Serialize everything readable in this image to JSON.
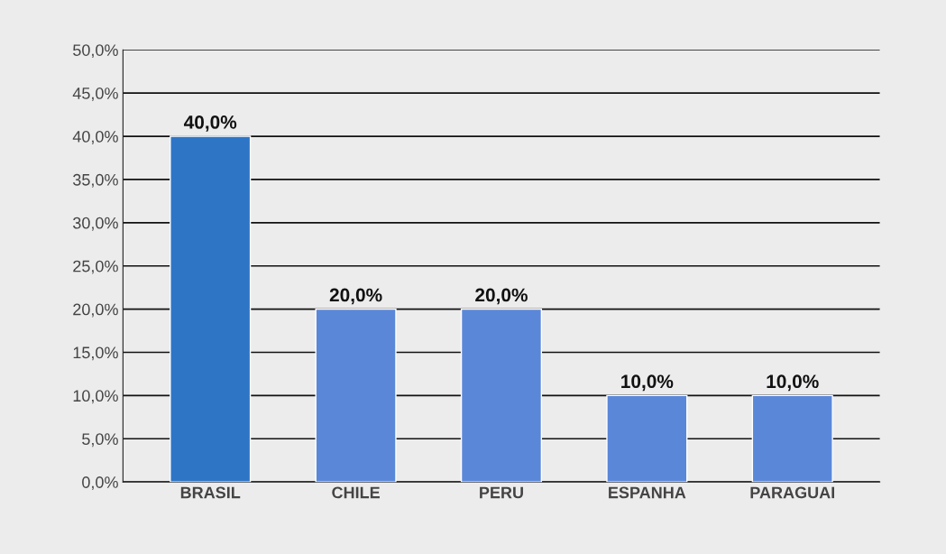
{
  "chart_data": {
    "type": "bar",
    "categories": [
      "BRASIL",
      "CHILE",
      "PERU",
      "ESPANHA",
      "PARAGUAI"
    ],
    "values": [
      40,
      20,
      20,
      10,
      10
    ],
    "colors": [
      "#2e75c6",
      "#5b87d8",
      "#5b87d8",
      "#5b87d8",
      "#5b87d8"
    ],
    "value_labels": [
      "40,0%",
      "20,0%",
      "20,0%",
      "10,0%",
      "10,0%"
    ],
    "ylim": [
      0,
      50
    ],
    "yticks": [
      {
        "value": 0,
        "label": "0,0%"
      },
      {
        "value": 5,
        "label": "5,0%"
      },
      {
        "value": 10,
        "label": "10,0%"
      },
      {
        "value": 15,
        "label": "15,0%"
      },
      {
        "value": 20,
        "label": "20,0%"
      },
      {
        "value": 25,
        "label": "25,0%"
      },
      {
        "value": 30,
        "label": "30,0%"
      },
      {
        "value": 35,
        "label": "35,0%"
      },
      {
        "value": 40,
        "label": "40,0%"
      },
      {
        "value": 45,
        "label": "45,0%"
      },
      {
        "value": 50,
        "label": "50,0%"
      }
    ],
    "grid": "y"
  }
}
